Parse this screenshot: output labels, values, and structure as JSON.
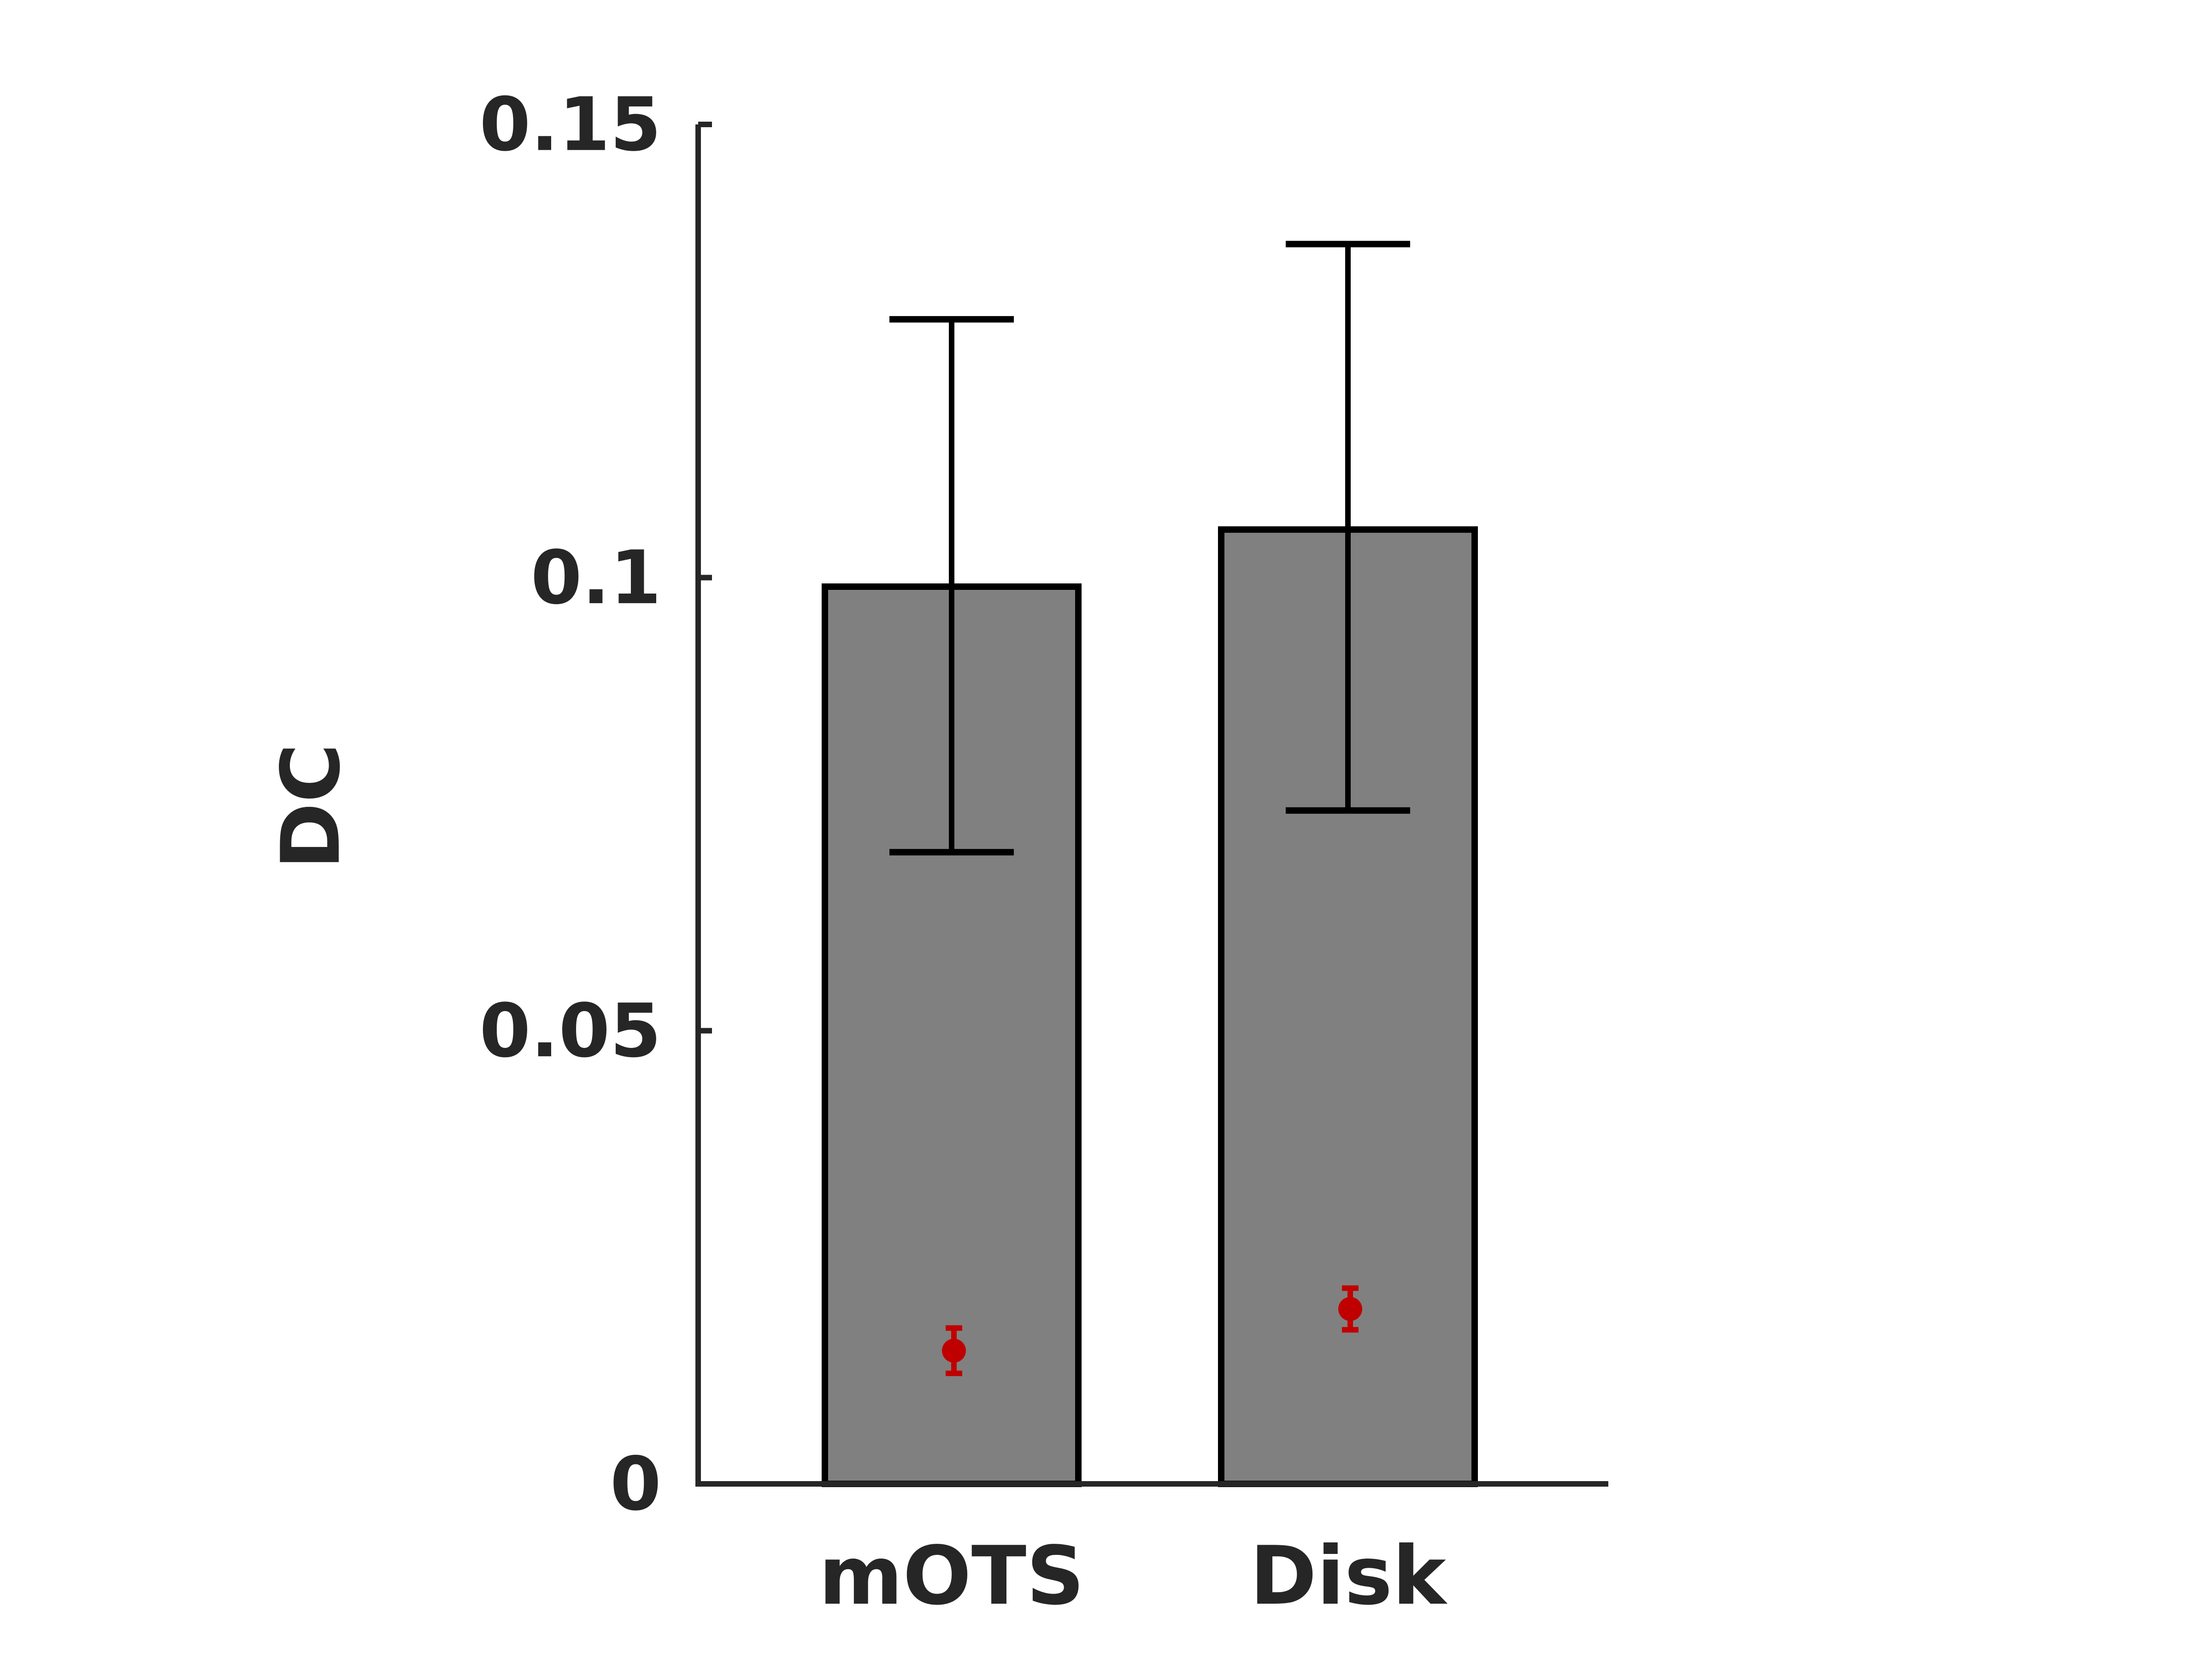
{
  "chart_data": {
    "type": "bar",
    "title": "",
    "xlabel": "",
    "ylabel": "DC",
    "categories": [
      "mOTS",
      "Disk"
    ],
    "values": [
      0.099,
      0.1053
    ],
    "error_upper": [
      0.1285,
      0.1368
    ],
    "error_lower": [
      0.0697,
      0.0743
    ],
    "null_marker": {
      "values": [
        0.0147,
        0.0193
      ],
      "upper": [
        0.0172,
        0.0216
      ],
      "lower": [
        0.0122,
        0.017
      ],
      "color": "#c00000"
    },
    "ylim": [
      0,
      0.15
    ],
    "yticks": [
      0,
      0.05,
      0.1,
      0.15
    ],
    "ytick_labels": [
      "0",
      "0.05",
      "0.1",
      "0.15"
    ],
    "grid": false,
    "colors": {
      "bar_fill": "#808080",
      "bar_edge": "#000000",
      "error_bar": "#000000",
      "axis": "#262626"
    }
  }
}
